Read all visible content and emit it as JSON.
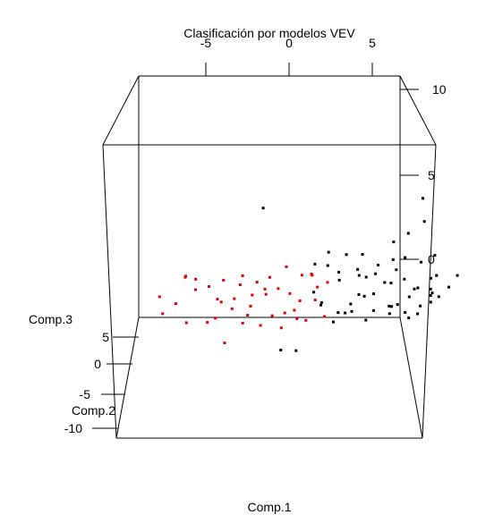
{
  "chart_data": {
    "type": "scatter",
    "title": "Clasificación por modelos VEV",
    "axes": {
      "x": {
        "label": "Comp.1",
        "ticks": [
          "-5",
          "0",
          "5"
        ]
      },
      "y": {
        "label": "Comp.2",
        "ticks": [
          "-10",
          "-5",
          "0",
          "5"
        ]
      },
      "z": {
        "label": "Comp.3",
        "ticks": [
          "0",
          "5",
          "10"
        ]
      }
    },
    "series": [
      {
        "color": "#e00000",
        "points": [
          [
            -7.2,
            -2.4,
            1.5
          ],
          [
            -6.9,
            -3.2,
            0.7
          ],
          [
            -6.4,
            -1.6,
            1.0
          ],
          [
            -6.0,
            -0.3,
            2.3
          ],
          [
            -5.5,
            -3.8,
            0.3
          ],
          [
            -5.3,
            -1.2,
            1.7
          ],
          [
            -5.0,
            2.1,
            -0.6
          ],
          [
            -4.9,
            -4.6,
            2.8
          ],
          [
            -4.5,
            -1.4,
            1.9
          ],
          [
            -4.0,
            -2.8,
            0.4
          ],
          [
            -3.8,
            0.2,
            2.0
          ],
          [
            -3.5,
            -2.5,
            -1.0
          ],
          [
            -3.2,
            -0.8,
            0.6
          ],
          [
            -3.0,
            -1.8,
            1.3
          ],
          [
            -2.7,
            1.2,
            -0.5
          ],
          [
            -2.5,
            -2.1,
            2.6
          ],
          [
            -2.3,
            -0.5,
            0.2
          ],
          [
            -2.0,
            -3.1,
            1.1
          ],
          [
            -1.8,
            0.8,
            1.8
          ],
          [
            -1.5,
            -1.5,
            -0.2
          ],
          [
            -1.3,
            2.3,
            0.9
          ],
          [
            -1.0,
            -0.1,
            2.2
          ],
          [
            -0.8,
            -2.6,
            0.5
          ],
          [
            -0.5,
            1.1,
            1.4
          ],
          [
            -0.3,
            -1.1,
            -0.4
          ],
          [
            0.0,
            0.4,
            2.7
          ],
          [
            0.2,
            -1.9,
            1.6
          ],
          [
            0.5,
            1.9,
            0.1
          ],
          [
            0.8,
            -0.6,
            1.0
          ],
          [
            1.0,
            2.6,
            1.9
          ],
          [
            1.2,
            0.9,
            -0.3
          ],
          [
            1.5,
            -0.2,
            2.4
          ],
          [
            1.8,
            1.6,
            0.7
          ],
          [
            2.0,
            2.9,
            1.2
          ],
          [
            2.3,
            0.3,
            0.0
          ],
          [
            -4.2,
            0.6,
            0.9
          ],
          [
            -2.9,
            1.8,
            1.5
          ],
          [
            -1.2,
            -2.9,
            2.0
          ],
          [
            0.6,
            -2.4,
            0.3
          ],
          [
            1.6,
            1.3,
            2.1
          ],
          [
            -3.6,
            -3.6,
            1.4
          ],
          [
            -0.1,
            2.2,
            -0.1
          ],
          [
            2.6,
            2.0,
            1.6
          ],
          [
            -5.8,
            -2.0,
            2.5
          ],
          [
            -2.2,
            2.7,
            0.8
          ]
        ]
      },
      {
        "color": "#000000",
        "points": [
          [
            -1.5,
            3.0,
            5.5
          ],
          [
            -0.3,
            -5.0,
            -1.0
          ],
          [
            0.5,
            -6.5,
            -0.8
          ],
          [
            1.5,
            -4.0,
            2.0
          ],
          [
            2.0,
            -2.5,
            1.2
          ],
          [
            2.5,
            0.2,
            2.8
          ],
          [
            3.0,
            -1.5,
            0.5
          ],
          [
            3.3,
            1.5,
            1.8
          ],
          [
            3.6,
            -3.0,
            1.2
          ],
          [
            4.0,
            0.8,
            0.2
          ],
          [
            4.3,
            -0.7,
            2.4
          ],
          [
            4.6,
            2.2,
            0.9
          ],
          [
            5.0,
            -2.0,
            1.6
          ],
          [
            5.3,
            0.5,
            0.3
          ],
          [
            5.6,
            1.8,
            2.1
          ],
          [
            6.0,
            -1.2,
            0.8
          ],
          [
            6.3,
            2.6,
            1.5
          ],
          [
            6.6,
            0.0,
            2.6
          ],
          [
            7.0,
            -0.8,
            0.4
          ],
          [
            7.3,
            1.2,
            1.9
          ],
          [
            7.6,
            -2.4,
            1.0
          ],
          [
            8.0,
            0.6,
            0.1
          ],
          [
            8.3,
            2.0,
            1.3
          ],
          [
            8.6,
            -0.4,
            2.2
          ],
          [
            9.0,
            1.5,
            0.6
          ],
          [
            2.2,
            2.4,
            0.3
          ],
          [
            2.8,
            -0.3,
            -0.2
          ],
          [
            3.4,
            3.0,
            2.0
          ],
          [
            4.1,
            -1.8,
            2.9
          ],
          [
            4.8,
            1.0,
            1.0
          ],
          [
            5.2,
            3.2,
            1.7
          ],
          [
            5.9,
            -2.7,
            2.3
          ],
          [
            6.4,
            1.3,
            0.0
          ],
          [
            6.9,
            2.9,
            2.7
          ],
          [
            7.4,
            -1.6,
            1.8
          ],
          [
            7.9,
            2.7,
            0.7
          ],
          [
            8.4,
            -1.3,
            1.4
          ],
          [
            8.8,
            3.3,
            2.5
          ],
          [
            9.2,
            0.2,
            1.1
          ],
          [
            9.6,
            2.5,
            1.9
          ],
          [
            3.8,
            2.1,
            3.1
          ],
          [
            4.4,
            -3.5,
            0.4
          ],
          [
            5.4,
            -0.9,
            3.0
          ],
          [
            6.2,
            -3.2,
            1.2
          ],
          [
            7.2,
            0.4,
            3.2
          ],
          [
            8.1,
            -2.9,
            2.0
          ],
          [
            8.9,
            -0.1,
            3.4
          ],
          [
            9.4,
            2.8,
            0.9
          ],
          [
            10.0,
            1.0,
            1.5
          ],
          [
            9.8,
            -2.0,
            2.6
          ],
          [
            8.2,
            0.0,
            6.5
          ],
          [
            8.6,
            1.5,
            5.0
          ],
          [
            7.8,
            2.5,
            4.2
          ],
          [
            3.2,
            -4.2,
            0.9
          ],
          [
            5.7,
            -4.5,
            1.3
          ],
          [
            6.7,
            -4.0,
            0.6
          ],
          [
            2.6,
            1.0,
            3.4
          ],
          [
            1.8,
            2.0,
            2.6
          ],
          [
            4.9,
            2.8,
            3.0
          ],
          [
            7.0,
            3.3,
            3.6
          ]
        ]
      }
    ]
  }
}
